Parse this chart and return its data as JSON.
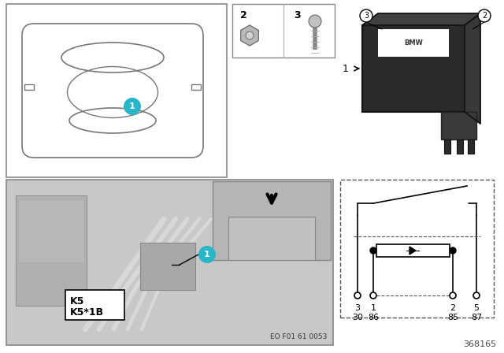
{
  "fig_number": "368165",
  "eo_number": "EO F01 61 0053",
  "bg": "#ffffff",
  "gray_light": "#d0d0d0",
  "gray_mid": "#b8b8b8",
  "gray_dark": "#a0a0a0",
  "black": "#000000",
  "teal": "#2bb5c8",
  "border": "#888888",
  "pin_labels_top": [
    "3",
    "1",
    "2",
    "5"
  ],
  "pin_labels_bottom": [
    "30",
    "86",
    "85",
    "87"
  ],
  "k_labels": [
    "K5",
    "K5*1B"
  ],
  "relay_dark": "#1e1e1e",
  "relay_mid": "#333333",
  "relay_pin": "#9a9a7a"
}
